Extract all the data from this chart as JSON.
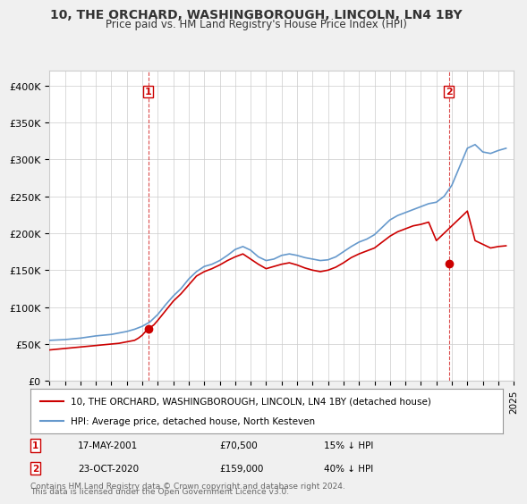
{
  "title": "10, THE ORCHARD, WASHINGBOROUGH, LINCOLN, LN4 1BY",
  "subtitle": "Price paid vs. HM Land Registry's House Price Index (HPI)",
  "legend_line1": "10, THE ORCHARD, WASHINGBOROUGH, LINCOLN, LN4 1BY (detached house)",
  "legend_line2": "HPI: Average price, detached house, North Kesteven",
  "footer1": "Contains HM Land Registry data © Crown copyright and database right 2024.",
  "footer2": "This data is licensed under the Open Government Licence v3.0.",
  "sale1_date": "17-MAY-2001",
  "sale1_price": "£70,500",
  "sale1_hpi": "15% ↓ HPI",
  "sale2_date": "23-OCT-2020",
  "sale2_price": "£159,000",
  "sale2_hpi": "40% ↓ HPI",
  "price_color": "#cc0000",
  "hpi_color": "#6699cc",
  "marker1_color": "#cc0000",
  "marker2_color": "#cc0000",
  "background_color": "#f0f0f0",
  "plot_bg_color": "#ffffff",
  "ylim": [
    0,
    420000
  ],
  "yticks": [
    0,
    50000,
    100000,
    150000,
    200000,
    250000,
    300000,
    350000,
    400000
  ],
  "ytick_labels": [
    "£0",
    "£50K",
    "£100K",
    "£150K",
    "£200K",
    "£250K",
    "£300K",
    "£350K",
    "£400K"
  ],
  "hpi_years": [
    1995,
    1995.5,
    1996,
    1996.5,
    1997,
    1997.5,
    1998,
    1998.5,
    1999,
    1999.5,
    2000,
    2000.5,
    2001,
    2001.5,
    2002,
    2002.5,
    2003,
    2003.5,
    2004,
    2004.5,
    2005,
    2005.5,
    2006,
    2006.5,
    2007,
    2007.5,
    2008,
    2008.5,
    2009,
    2009.5,
    2010,
    2010.5,
    2011,
    2011.5,
    2012,
    2012.5,
    2013,
    2013.5,
    2014,
    2014.5,
    2015,
    2015.5,
    2016,
    2016.5,
    2017,
    2017.5,
    2018,
    2018.5,
    2019,
    2019.5,
    2020,
    2020.5,
    2021,
    2021.5,
    2022,
    2022.5,
    2023,
    2023.5,
    2024,
    2024.5
  ],
  "hpi_values": [
    55000,
    55500,
    56000,
    57000,
    58000,
    59500,
    61000,
    62000,
    63000,
    65000,
    67000,
    70000,
    74000,
    80000,
    90000,
    103000,
    115000,
    125000,
    138000,
    148000,
    155000,
    158000,
    163000,
    170000,
    178000,
    182000,
    177000,
    168000,
    163000,
    165000,
    170000,
    172000,
    170000,
    167000,
    165000,
    163000,
    164000,
    168000,
    175000,
    182000,
    188000,
    192000,
    198000,
    208000,
    218000,
    224000,
    228000,
    232000,
    236000,
    240000,
    242000,
    250000,
    265000,
    290000,
    315000,
    320000,
    310000,
    308000,
    312000,
    315000
  ],
  "price_years": [
    1995,
    1995.25,
    1995.5,
    1995.75,
    1996,
    1996.25,
    1996.5,
    1996.75,
    1997,
    1997.25,
    1997.5,
    1997.75,
    1998,
    1998.25,
    1998.5,
    1998.75,
    1999,
    1999.25,
    1999.5,
    1999.75,
    2000,
    2000.25,
    2000.5,
    2000.75,
    2001,
    2001.25,
    2001.5,
    2001.75,
    2002,
    2002.5,
    2003,
    2003.5,
    2004,
    2004.5,
    2005,
    2005.5,
    2006,
    2006.5,
    2007,
    2007.5,
    2008,
    2008.5,
    2009,
    2009.5,
    2010,
    2010.5,
    2011,
    2011.5,
    2012,
    2012.5,
    2013,
    2013.5,
    2014,
    2014.5,
    2015,
    2015.5,
    2016,
    2016.5,
    2017,
    2017.5,
    2018,
    2018.5,
    2019,
    2019.5,
    2020,
    2020.5,
    2021,
    2021.5,
    2022,
    2022.5,
    2023,
    2023.5,
    2024,
    2024.5
  ],
  "price_values": [
    42000,
    42500,
    43000,
    43500,
    44000,
    44500,
    45000,
    45500,
    46000,
    46500,
    47000,
    47500,
    48000,
    48500,
    49000,
    49500,
    50000,
    50500,
    51000,
    52000,
    53000,
    54000,
    55000,
    58000,
    62000,
    68000,
    72000,
    76000,
    82000,
    95000,
    108000,
    118000,
    130000,
    142000,
    148000,
    152000,
    157000,
    163000,
    168000,
    172000,
    165000,
    158000,
    152000,
    155000,
    158000,
    160000,
    157000,
    153000,
    150000,
    148000,
    150000,
    154000,
    160000,
    167000,
    172000,
    176000,
    180000,
    188000,
    196000,
    202000,
    206000,
    210000,
    212000,
    215000,
    190000,
    200000,
    210000,
    220000,
    230000,
    190000,
    185000,
    180000,
    182000,
    183000
  ],
  "xlim": [
    1995,
    2025
  ],
  "xticks": [
    1995,
    1996,
    1997,
    1998,
    1999,
    2000,
    2001,
    2002,
    2003,
    2004,
    2005,
    2006,
    2007,
    2008,
    2009,
    2010,
    2011,
    2012,
    2013,
    2014,
    2015,
    2016,
    2017,
    2018,
    2019,
    2020,
    2021,
    2022,
    2023,
    2024,
    2025
  ],
  "sale1_x": 2001.38,
  "sale1_y": 70500,
  "sale2_x": 2020.81,
  "sale2_y": 159000
}
